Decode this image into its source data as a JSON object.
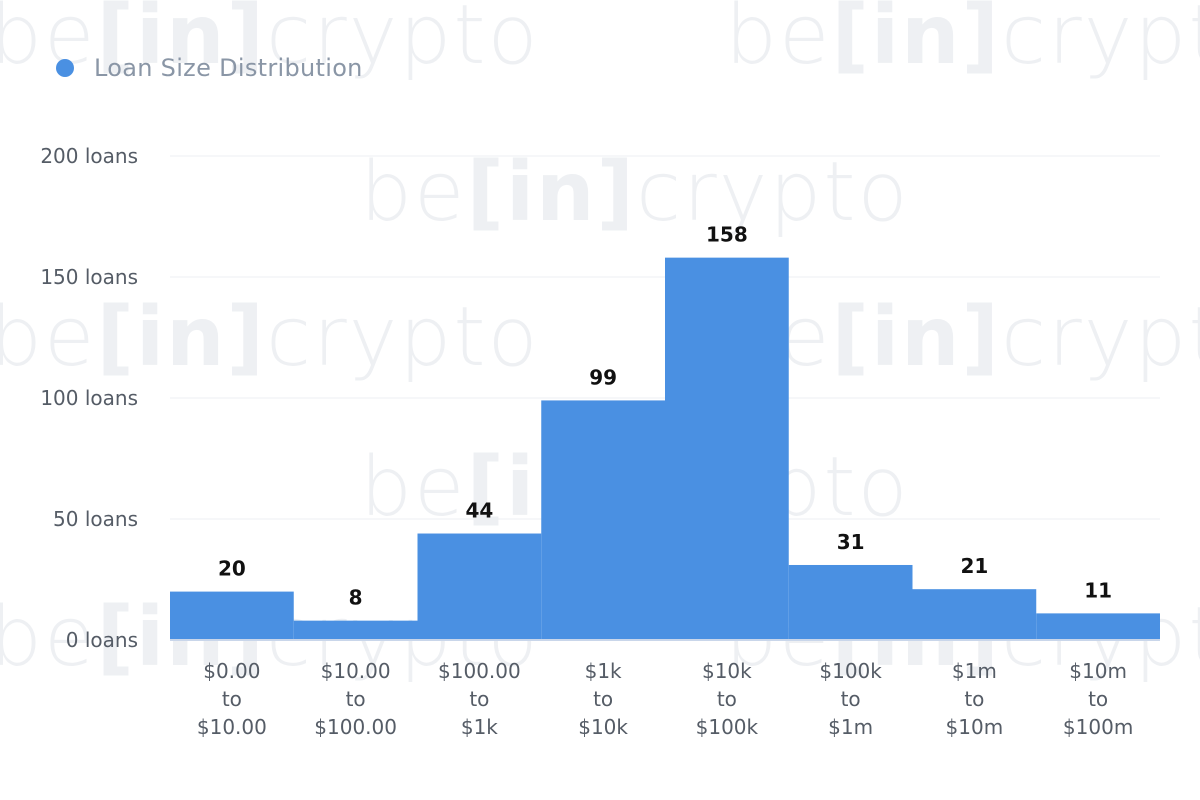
{
  "brand": {
    "watermark_be": "be",
    "watermark_in": "[in]",
    "watermark_crypto": "crypto"
  },
  "colors": {
    "bar": "#4a90e2",
    "grid": "#eceff3",
    "axis_text": "#555c66",
    "data_label": "#111111",
    "baseline": "#c9d6ea"
  },
  "legend": {
    "label": "Loan Size Distribution"
  },
  "chart_data": {
    "type": "bar",
    "series": [
      {
        "name": "Loan Size Distribution",
        "values": [
          20,
          8,
          44,
          99,
          158,
          31,
          21,
          11
        ]
      }
    ],
    "categories": [
      [
        "$0.00",
        "to",
        "$10.00"
      ],
      [
        "$10.00",
        "to",
        "$100.00"
      ],
      [
        "$100.00",
        "to",
        "$1k"
      ],
      [
        "$1k",
        "to",
        "$10k"
      ],
      [
        "$10k",
        "to",
        "$100k"
      ],
      [
        "$100k",
        "to",
        "$1m"
      ],
      [
        "$1m",
        "to",
        "$10m"
      ],
      [
        "$10m",
        "to",
        "$100m"
      ]
    ],
    "values": [
      20,
      8,
      44,
      99,
      158,
      31,
      21,
      11
    ],
    "data_labels": [
      "20",
      "8",
      "44",
      "99",
      "158",
      "31",
      "21",
      "11"
    ],
    "y_ticks": [
      0,
      50,
      100,
      150,
      200
    ],
    "y_tick_labels": [
      "0 loans",
      "50 loans",
      "100 loans",
      "150 loans",
      "200 loans"
    ],
    "ylim": [
      0,
      200
    ],
    "grid": true,
    "legend_position": "top-left"
  }
}
